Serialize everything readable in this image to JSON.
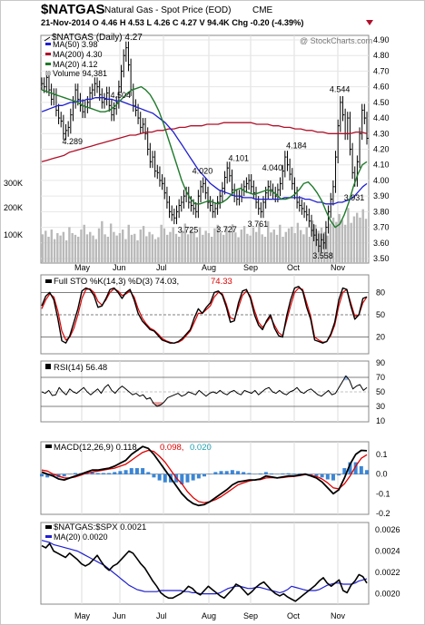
{
  "header": {
    "symbol": "$NATGAS",
    "name": "Natural Gas - Spot Price (EOD)",
    "exchange": "CME",
    "quote_line": "21-Nov-2014  O 4.46  H 4.53  L 4.26  C 4.27  V 94.4K  Chg -0.20 (-4.39%)",
    "watermark": "@ StockCharts.com"
  },
  "colors": {
    "price": "#000000",
    "ma50": "#1f1fd0",
    "ma200": "#b0102a",
    "ma20": "#1e7a2a",
    "volume": "#b9b9b9",
    "red_line": "#e00000",
    "hist": "#3b86d6",
    "neg_fill": "#e07070",
    "pos_fill": "#8fb0e0",
    "cyan_text": "#1aa0b0"
  },
  "chart_data": [
    {
      "type": "line",
      "panel": "price",
      "title": "$NATGAS (Daily) 4.27",
      "legend": [
        "MA(50) 3.98",
        "MA(200) 4.30",
        "MA(20) 4.12",
        "Volume 94,381"
      ],
      "x_labels": [
        "May",
        "Jun",
        "Jul",
        "Aug",
        "Sep",
        "Oct",
        "Nov"
      ],
      "y_ticks": [
        "4.90",
        "4.80",
        "4.70",
        "4.60",
        "4.50",
        "4.40",
        "4.30",
        "4.20",
        "4.10",
        "4.00",
        "3.90",
        "3.80",
        "3.70",
        "3.60",
        "3.50"
      ],
      "ylim": [
        3.5,
        4.9
      ],
      "vol_ticks": [
        "300K",
        "200K",
        "100K"
      ],
      "annotations": [
        {
          "label": "4.504",
          "x": 33,
          "y": 4.504
        },
        {
          "label": "4.289",
          "x": 13,
          "y": 4.289
        },
        {
          "label": "4.020",
          "x": 67,
          "y": 4.02
        },
        {
          "label": "4.101",
          "x": 82,
          "y": 4.101
        },
        {
          "label": "4.040",
          "x": 96,
          "y": 4.04
        },
        {
          "label": "4.184",
          "x": 106,
          "y": 4.184
        },
        {
          "label": "3.725",
          "x": 61,
          "y": 3.725
        },
        {
          "label": "3.727",
          "x": 77,
          "y": 3.727
        },
        {
          "label": "3.761",
          "x": 90,
          "y": 3.761
        },
        {
          "label": "4.544",
          "x": 124,
          "y": 4.544
        },
        {
          "label": "3.931",
          "x": 130,
          "y": 3.931
        },
        {
          "label": "3.558",
          "x": 117,
          "y": 3.558
        }
      ],
      "close": [
        4.62,
        4.6,
        4.66,
        4.58,
        4.52,
        4.55,
        4.45,
        4.4,
        4.38,
        4.3,
        4.32,
        4.34,
        4.42,
        4.5,
        4.58,
        4.52,
        4.48,
        4.44,
        4.47,
        4.5,
        4.56,
        4.58,
        4.62,
        4.6,
        4.55,
        4.5,
        4.52,
        4.56,
        4.48,
        4.42,
        4.46,
        4.5,
        4.6,
        4.7,
        4.8,
        4.85,
        4.74,
        4.58,
        4.48,
        4.45,
        4.4,
        4.34,
        4.36,
        4.3,
        4.2,
        4.12,
        4.15,
        4.06,
        4.05,
        4.0,
        3.98,
        3.92,
        3.86,
        3.8,
        3.78,
        3.76,
        3.8,
        3.84,
        3.86,
        3.9,
        3.92,
        3.86,
        3.84,
        3.82,
        3.8,
        3.9,
        3.96,
        3.98,
        3.92,
        3.86,
        3.84,
        3.8,
        3.82,
        3.86,
        3.9,
        3.95,
        4.02,
        4.08,
        4.03,
        3.94,
        3.9,
        3.88,
        3.9,
        3.94,
        3.96,
        3.98,
        4.0,
        3.96,
        3.92,
        3.86,
        3.82,
        3.8,
        3.86,
        3.92,
        3.96,
        3.94,
        3.92,
        3.9,
        3.94,
        3.98,
        4.06,
        4.15,
        4.1,
        4.04,
        3.98,
        3.92,
        3.86,
        3.84,
        3.82,
        3.8,
        3.78,
        3.74,
        3.68,
        3.65,
        3.62,
        3.58,
        3.62,
        3.6,
        3.7,
        3.8,
        3.88,
        3.96,
        4.15,
        4.35,
        4.5,
        4.42,
        4.3,
        4.4,
        4.2,
        4.05,
        4.0,
        4.12,
        4.3,
        4.45,
        4.4,
        4.27
      ],
      "ma50": [
        4.44,
        4.45,
        4.46,
        4.47,
        4.48,
        4.48,
        4.49,
        4.5,
        4.5,
        4.51,
        4.51,
        4.52,
        4.52,
        4.53,
        4.53,
        4.53,
        4.52,
        4.52,
        4.51,
        4.51,
        4.5,
        4.49,
        4.48,
        4.47,
        4.46,
        4.45,
        4.44,
        4.43,
        4.41,
        4.39,
        4.37,
        4.34,
        4.31,
        4.27,
        4.23,
        4.19,
        4.15,
        4.11,
        4.07,
        4.04,
        4.01,
        3.98,
        3.96,
        3.94,
        3.93,
        3.92,
        3.91,
        3.9,
        3.9,
        3.89,
        3.89,
        3.89,
        3.88,
        3.88,
        3.88,
        3.88,
        3.88,
        3.88,
        3.88,
        3.89,
        3.89,
        3.89,
        3.89,
        3.89,
        3.88,
        3.88,
        3.87,
        3.86,
        3.86,
        3.85,
        3.85,
        3.85,
        3.86,
        3.86,
        3.87,
        3.88,
        3.9,
        3.93,
        3.96,
        3.98
      ],
      "ma200": [
        4.12,
        4.13,
        4.14,
        4.15,
        4.16,
        4.18,
        4.19,
        4.2,
        4.21,
        4.22,
        4.23,
        4.24,
        4.25,
        4.26,
        4.27,
        4.28,
        4.29,
        4.29,
        4.3,
        4.31,
        4.31,
        4.32,
        4.32,
        4.33,
        4.33,
        4.34,
        4.34,
        4.35,
        4.35,
        4.35,
        4.36,
        4.36,
        4.36,
        4.37,
        4.37,
        4.37,
        4.37,
        4.37,
        4.37,
        4.36,
        4.36,
        4.36,
        4.35,
        4.35,
        4.34,
        4.34,
        4.33,
        4.33,
        4.32,
        4.32,
        4.31,
        4.31,
        4.3,
        4.3,
        4.3,
        4.3,
        4.3,
        4.31,
        4.31,
        4.3
      ],
      "ma20": [
        4.58,
        4.57,
        4.56,
        4.55,
        4.54,
        4.53,
        4.52,
        4.51,
        4.5,
        4.48,
        4.47,
        4.46,
        4.45,
        4.44,
        4.44,
        4.45,
        4.47,
        4.5,
        4.53,
        4.56,
        4.58,
        4.59,
        4.6,
        4.58,
        4.55,
        4.5,
        4.44,
        4.36,
        4.27,
        4.18,
        4.09,
        4.0,
        3.93,
        3.88,
        3.85,
        3.85,
        3.86,
        3.87,
        3.86,
        3.85,
        3.86,
        3.88,
        3.91,
        3.94,
        3.95,
        3.93,
        3.92,
        3.91,
        3.92,
        3.93,
        3.94,
        3.93,
        3.91,
        3.88,
        3.88,
        3.89,
        3.91,
        3.94,
        3.98,
        3.99,
        3.96,
        3.92,
        3.87,
        3.8,
        3.74,
        3.7,
        3.72,
        3.78,
        3.86,
        3.96,
        4.04,
        4.1,
        4.12
      ]
    },
    {
      "type": "line",
      "panel": "stochastics",
      "title": "Full STO %K(14,3) %D(3) 74.03, 74.33",
      "title_main": "Full STO %K(14,3) %D(3) 74.03,",
      "title_red": "74.33",
      "y_ticks": [
        "80",
        "50",
        "20"
      ],
      "ylim": [
        0,
        100
      ],
      "k": [
        62,
        75,
        80,
        70,
        45,
        15,
        12,
        22,
        40,
        58,
        82,
        86,
        84,
        76,
        60,
        62,
        72,
        84,
        86,
        80,
        72,
        80,
        84,
        70,
        52,
        42,
        36,
        30,
        28,
        22,
        16,
        14,
        12,
        12,
        14,
        18,
        24,
        30,
        46,
        58,
        52,
        60,
        66,
        80,
        82,
        76,
        60,
        40,
        42,
        66,
        82,
        84,
        72,
        50,
        36,
        30,
        42,
        50,
        32,
        22,
        20,
        48,
        70,
        86,
        88,
        82,
        60,
        44,
        16,
        14,
        12,
        14,
        24,
        40,
        70,
        86,
        84,
        62,
        44,
        50,
        72,
        74
      ],
      "d": [
        58,
        70,
        78,
        74,
        55,
        28,
        16,
        20,
        32,
        50,
        72,
        84,
        85,
        80,
        68,
        63,
        70,
        80,
        85,
        82,
        76,
        78,
        82,
        74,
        58,
        46,
        38,
        32,
        29,
        24,
        18,
        15,
        13,
        12,
        13,
        16,
        22,
        28,
        40,
        52,
        52,
        57,
        62,
        74,
        80,
        78,
        64,
        46,
        44,
        60,
        76,
        82,
        75,
        56,
        40,
        33,
        40,
        47,
        36,
        26,
        22,
        42,
        62,
        80,
        86,
        84,
        66,
        48,
        20,
        16,
        13,
        14,
        22,
        36,
        62,
        80,
        84,
        66,
        48,
        50,
        66,
        74
      ]
    },
    {
      "type": "line",
      "panel": "rsi",
      "title": "RSI(14) 56.48",
      "y_ticks": [
        "90",
        "70",
        "50",
        "30",
        "10"
      ],
      "ylim": [
        10,
        90
      ],
      "rsi": [
        50,
        48,
        52,
        45,
        46,
        56,
        50,
        46,
        54,
        50,
        48,
        52,
        56,
        50,
        46,
        50,
        54,
        48,
        56,
        60,
        52,
        48,
        54,
        58,
        54,
        50,
        46,
        48,
        44,
        46,
        40,
        42,
        34,
        30,
        32,
        36,
        42,
        44,
        46,
        48,
        44,
        46,
        50,
        48,
        46,
        52,
        48,
        44,
        48,
        50,
        48,
        52,
        48,
        46,
        50,
        52,
        48,
        46,
        52,
        50,
        48,
        52,
        46,
        50,
        54,
        56,
        50,
        48,
        52,
        48,
        46,
        50,
        52,
        56,
        50,
        48,
        52,
        54,
        50,
        46,
        44,
        48,
        52,
        46,
        48,
        56,
        64,
        72,
        66,
        54,
        58,
        60,
        52,
        56
      ]
    },
    {
      "type": "line",
      "panel": "macd",
      "title": "MACD(12,26,9) 0.118, 0.098, 0.020",
      "title_main": "MACD(12,26,9) 0.118,",
      "title_red": "0.098,",
      "title_cyan": "0.020",
      "y_ticks": [
        "0.1",
        "0.0",
        "-0.1",
        "-0.2"
      ],
      "ylim": [
        -0.2,
        0.15
      ],
      "macd": [
        0.01,
        0.0,
        -0.01,
        -0.025,
        -0.03,
        -0.02,
        -0.01,
        0.0,
        0.01,
        0.02,
        0.02,
        0.025,
        0.03,
        0.04,
        0.055,
        0.07,
        0.1,
        0.12,
        0.14,
        0.13,
        0.1,
        0.06,
        0.02,
        -0.02,
        -0.06,
        -0.1,
        -0.13,
        -0.15,
        -0.16,
        -0.155,
        -0.14,
        -0.12,
        -0.1,
        -0.08,
        -0.055,
        -0.04,
        -0.035,
        -0.03,
        -0.03,
        -0.025,
        -0.01,
        -0.015,
        -0.02,
        -0.015,
        -0.01,
        -0.01,
        -0.005,
        0.0,
        -0.01,
        -0.02,
        -0.04,
        -0.07,
        -0.1,
        -0.08,
        -0.02,
        0.05,
        0.1,
        0.12,
        0.118
      ],
      "signal": [
        0.02,
        0.015,
        0.0,
        -0.01,
        -0.02,
        -0.02,
        -0.015,
        -0.005,
        0.005,
        0.01,
        0.015,
        0.02,
        0.025,
        0.03,
        0.04,
        0.05,
        0.07,
        0.09,
        0.11,
        0.12,
        0.115,
        0.09,
        0.06,
        0.02,
        -0.02,
        -0.05,
        -0.09,
        -0.12,
        -0.14,
        -0.145,
        -0.14,
        -0.13,
        -0.115,
        -0.095,
        -0.075,
        -0.055,
        -0.045,
        -0.035,
        -0.03,
        -0.028,
        -0.02,
        -0.018,
        -0.02,
        -0.018,
        -0.014,
        -0.012,
        -0.008,
        -0.003,
        -0.006,
        -0.012,
        -0.025,
        -0.045,
        -0.07,
        -0.075,
        -0.05,
        -0.01,
        0.04,
        0.08,
        0.098
      ],
      "histogram": [
        -0.01,
        -0.015,
        -0.01,
        -0.015,
        -0.01,
        0.0,
        0.005,
        0.005,
        0.005,
        0.01,
        0.005,
        0.005,
        0.005,
        0.01,
        0.015,
        0.02,
        0.03,
        0.03,
        0.03,
        0.01,
        -0.015,
        -0.03,
        -0.04,
        -0.04,
        -0.04,
        -0.05,
        -0.04,
        -0.03,
        -0.02,
        -0.01,
        0.0,
        0.01,
        0.015,
        0.015,
        0.02,
        0.015,
        0.01,
        0.005,
        0.0,
        0.003,
        0.01,
        0.003,
        0.0,
        0.003,
        0.004,
        0.002,
        0.003,
        0.003,
        -0.004,
        -0.008,
        -0.015,
        -0.025,
        -0.03,
        -0.005,
        0.03,
        0.06,
        0.06,
        0.04,
        0.02
      ]
    },
    {
      "type": "line",
      "panel": "ratio",
      "title": "$NATGAS:$SPX 0.0021",
      "legend": [
        "MA(20) 0.0020"
      ],
      "y_ticks": [
        "0.0026",
        "0.0024",
        "0.0022",
        "0.0020"
      ],
      "ylim": [
        0.00192,
        0.00265
      ],
      "ratio": [
        0.00245,
        0.00243,
        0.00247,
        0.0024,
        0.00238,
        0.00236,
        0.00234,
        0.00238,
        0.00235,
        0.00232,
        0.00228,
        0.00226,
        0.00228,
        0.00232,
        0.00236,
        0.0023,
        0.00225,
        0.00222,
        0.00226,
        0.00228,
        0.00232,
        0.00236,
        0.0024,
        0.00238,
        0.00233,
        0.00228,
        0.00224,
        0.00218,
        0.00212,
        0.00207,
        0.00201,
        0.00198,
        0.00196,
        0.00196,
        0.00198,
        0.002,
        0.00203,
        0.00207,
        0.00205,
        0.00201,
        0.00199,
        0.00203,
        0.00207,
        0.00204,
        0.00201,
        0.00198,
        0.00196,
        0.002,
        0.00204,
        0.00209,
        0.00207,
        0.00203,
        0.00199,
        0.00202,
        0.00206,
        0.00209,
        0.00211,
        0.00207,
        0.00203,
        0.002,
        0.00198,
        0.002,
        0.00197,
        0.00195,
        0.00193,
        0.00196,
        0.00199,
        0.00202,
        0.00205,
        0.00208,
        0.00212,
        0.00215,
        0.0021,
        0.00207,
        0.0021,
        0.00213,
        0.00203,
        0.00201,
        0.00208,
        0.00212,
        0.00218,
        0.00216,
        0.0021
      ],
      "ma20": [
        0.0025,
        0.00249,
        0.00248,
        0.00246,
        0.00245,
        0.00244,
        0.00243,
        0.00242,
        0.00241,
        0.0024,
        0.00238,
        0.00236,
        0.00234,
        0.00232,
        0.0023,
        0.00228,
        0.00226,
        0.00223,
        0.0022,
        0.00217,
        0.00214,
        0.00211,
        0.00208,
        0.00206,
        0.00204,
        0.00203,
        0.00202,
        0.00202,
        0.00202,
        0.00202,
        0.00203,
        0.00203,
        0.00203,
        0.00203,
        0.00203,
        0.00203,
        0.00202,
        0.00202,
        0.00201,
        0.00201,
        0.002,
        0.002,
        0.002,
        0.002,
        0.002,
        0.00201,
        0.00203,
        0.00205,
        0.00206,
        0.00207,
        0.00207,
        0.00206,
        0.00205,
        0.00205,
        0.00206,
        0.00206,
        0.00205,
        0.00204,
        0.00203,
        0.00202,
        0.00201,
        0.00202,
        0.00204,
        0.00207,
        0.00206,
        0.00205,
        0.00204,
        0.00203,
        0.00203,
        0.00203,
        0.00204,
        0.00206,
        0.00208,
        0.00209,
        0.0021,
        0.0021,
        0.00209,
        0.00209,
        0.00209,
        0.0021,
        0.00212,
        0.00213,
        0.00214
      ]
    }
  ],
  "volume": [
    120,
    135,
    110,
    140,
    100,
    125,
    115,
    130,
    95,
    150,
    125,
    118,
    110,
    140,
    160,
    120,
    130,
    115,
    100,
    145,
    175,
    120,
    110,
    165,
    130,
    115,
    125,
    140,
    100,
    160,
    118,
    122,
    95,
    140,
    155,
    112,
    130,
    120,
    100,
    108,
    160,
    145,
    118,
    130,
    150,
    122,
    110,
    135,
    165,
    120,
    140,
    128,
    108,
    150,
    118,
    135,
    125,
    110,
    145,
    160,
    128,
    118,
    150,
    130,
    162,
    128,
    108,
    140,
    155,
    122,
    115,
    148,
    130,
    165,
    120,
    110,
    175,
    128,
    140,
    118,
    160,
    110,
    130,
    145,
    152,
    125,
    168,
    138,
    120,
    150,
    110,
    178,
    160,
    135,
    148,
    130,
    115,
    165,
    190,
    172,
    205,
    180,
    160,
    230,
    168,
    195,
    210,
    190,
    225,
    185
  ]
}
